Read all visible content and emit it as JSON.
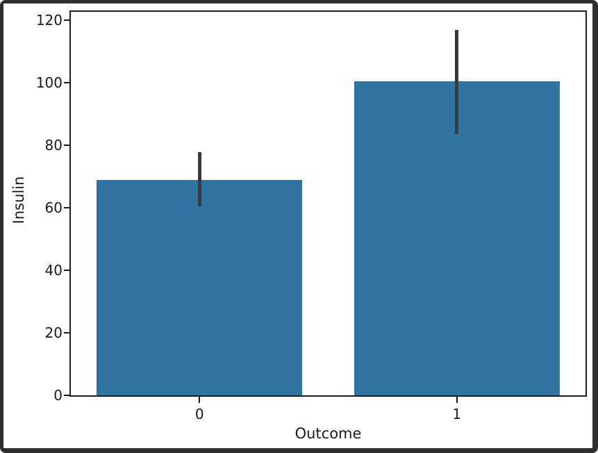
{
  "figure": {
    "frame_color": "#2f2f2f",
    "background": "#ffffff"
  },
  "chart_data": {
    "type": "bar",
    "categories": [
      "0",
      "1"
    ],
    "values": [
      68.8,
      100.3
    ],
    "error_bars": {
      "low": [
        60.3,
        83.4
      ],
      "high": [
        77.7,
        116.9
      ]
    },
    "title": "",
    "xlabel": "Outcome",
    "ylabel": "Insulin",
    "yticks": [
      0,
      20,
      40,
      60,
      80,
      100,
      120
    ],
    "ylim": [
      0,
      122.6
    ],
    "bar_width_fraction": 0.8,
    "grid": false,
    "legend": "none",
    "bar_color": "#3274a1",
    "error_color": "#3a3a3a",
    "axis_color": "#1a1a1a",
    "tick_label_color": "#1a1a1a"
  }
}
